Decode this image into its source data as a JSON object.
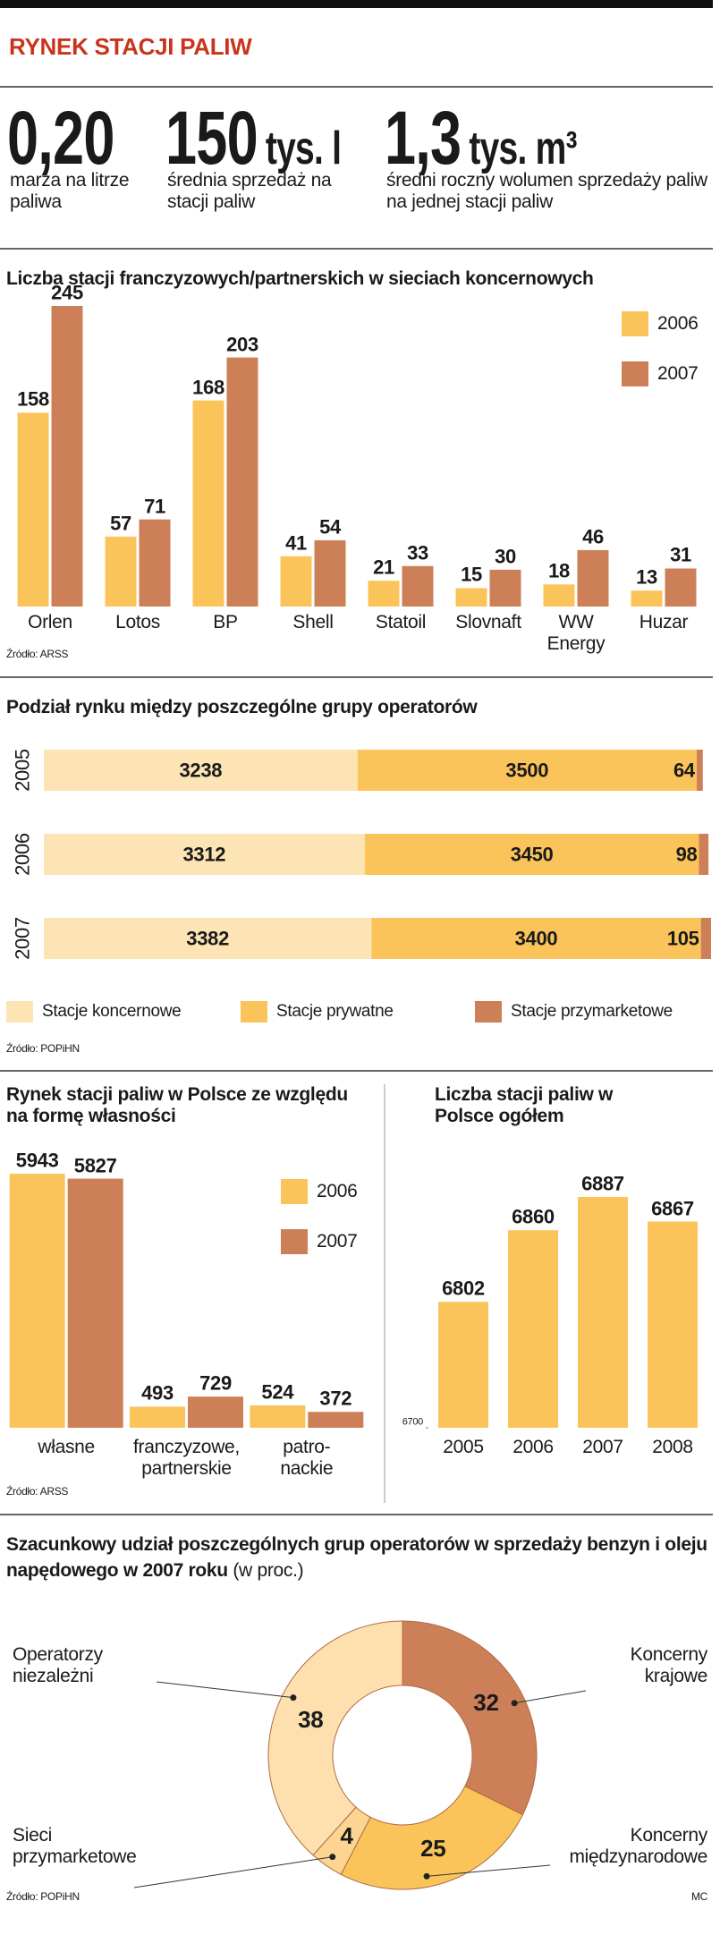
{
  "header": {
    "title": "RYNEK STACJI PALIW"
  },
  "stats": [
    {
      "value": "0,20",
      "label": "marża na litrze paliwa"
    },
    {
      "value": "150",
      "unit": "tys. l",
      "label": "średnia sprzedaż na stacji paliw"
    },
    {
      "value": "1,3",
      "unit": "tys. m³",
      "label": "średni roczny wolumen sprzedaży paliw na jednej stacji paliw"
    }
  ],
  "chart_data": [
    {
      "type": "bar",
      "title": "Liczba stacji franczyzowych/partnerskich w sieciach koncernowych",
      "categories": [
        "Orlen",
        "Lotos",
        "BP",
        "Shell",
        "Statoil",
        "Slovnaft",
        "WW Energy",
        "Huzar"
      ],
      "series": [
        {
          "name": "2006",
          "color": "#fbc45a",
          "values": [
            158,
            57,
            168,
            41,
            21,
            15,
            18,
            13
          ]
        },
        {
          "name": "2007",
          "color": "#cd8058",
          "values": [
            245,
            71,
            203,
            54,
            33,
            30,
            46,
            31
          ]
        }
      ],
      "legend": "top-right",
      "source": "Źródło: ARSS"
    },
    {
      "type": "stacked-barh",
      "title": "Podział rynku między poszczególne grupy operatorów",
      "categories": [
        "2005",
        "2006",
        "2007"
      ],
      "series": [
        {
          "name": "Stacje koncernowe",
          "color": "#fde4b5",
          "values": [
            3238,
            3312,
            3382
          ]
        },
        {
          "name": "Stacje prywatne",
          "color": "#fbc45a",
          "values": [
            3500,
            3450,
            3400
          ]
        },
        {
          "name": "Stacje przymarketowe",
          "color": "#cd8058",
          "values": [
            64,
            98,
            105
          ]
        }
      ],
      "legend": "bottom",
      "source": "Źródło: POPiHN"
    },
    {
      "type": "bar",
      "title": "Rynek stacji paliw w Polsce ze względu na formę własności",
      "categories": [
        "własne",
        "franczyzowe, partnerskie",
        "patro-\nnackie"
      ],
      "series": [
        {
          "name": "2006",
          "color": "#fbc45a",
          "values": [
            5943,
            493,
            524
          ]
        },
        {
          "name": "2007",
          "color": "#cd8058",
          "values": [
            5827,
            729,
            372
          ]
        }
      ],
      "legend": "top-right",
      "source": "Źródło: ARSS"
    },
    {
      "type": "bar",
      "title": "Liczba stacji paliw w Polsce ogółem",
      "categories": [
        "2005",
        "2006",
        "2007",
        "2008"
      ],
      "values": [
        6802,
        6860,
        6887,
        6867
      ],
      "color": "#fbc45a",
      "ylim": [
        6700,
        6900
      ],
      "yticks": [
        6700
      ]
    },
    {
      "type": "donut",
      "title": "Szacunkowy udział poszczególnych grup operatorów w sprzedaży benzyn i oleju napędowego w 2007 roku",
      "subtitle": "(w proc.)",
      "categories": [
        "Koncerny krajowe",
        "Koncerny międzynarodowe",
        "Sieci przymarketowe",
        "Operatorzy niezależni"
      ],
      "values": [
        32,
        25,
        4,
        38
      ],
      "colors": [
        "#cd8058",
        "#fbc45a",
        "#fcd592",
        "#fde0ad"
      ],
      "source": "Źródło: POPiHN",
      "credit": "MC"
    }
  ]
}
